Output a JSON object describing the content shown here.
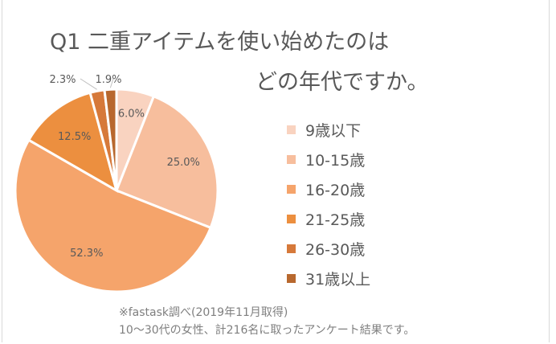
{
  "chart_data": {
    "type": "pie",
    "title": "Q1 二重アイテムを使い始めたのは",
    "title_line2": "どの年代ですか。",
    "categories": [
      "9歳以下",
      "10-15歳",
      "16-20歳",
      "21-25歳",
      "26-30歳",
      "31歳以上"
    ],
    "values": [
      6.0,
      25.0,
      52.3,
      12.5,
      2.3,
      1.9
    ],
    "labels": [
      "6.0%",
      "25.0%",
      "52.3%",
      "12.5%",
      "2.3%",
      "1.9%"
    ],
    "colors": [
      "#F9D3C0",
      "#F7BE9D",
      "#F5A46B",
      "#EC8F3F",
      "#D6793A",
      "#B8682E"
    ],
    "legend_position": "right",
    "start_angle": "12 o'clock, clockwise"
  },
  "notes": {
    "line1": "※fastask調べ(2019年11月取得)",
    "line2": "10～30代の女性、計216名に取ったアンケート結果です。"
  }
}
